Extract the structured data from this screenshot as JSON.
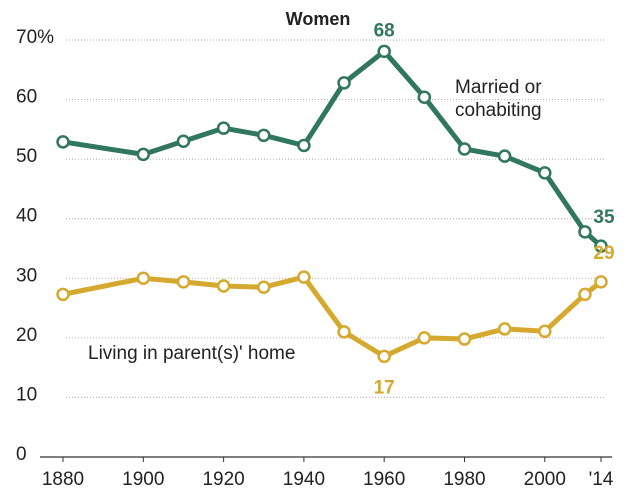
{
  "chart_data": {
    "type": "line",
    "title": "Women",
    "x": [
      1880,
      1900,
      1910,
      1920,
      1930,
      1940,
      1950,
      1960,
      1970,
      1980,
      1990,
      2000,
      2010,
      2014
    ],
    "series": [
      {
        "name": "Married or cohabiting",
        "color": "#31765e",
        "values": [
          52.9,
          50.8,
          53,
          55.2,
          54,
          52.3,
          62.8,
          68.1,
          60.4,
          51.7,
          50.5,
          47.7,
          37.8,
          35.4
        ],
        "value_labels": [
          null,
          null,
          null,
          null,
          null,
          null,
          null,
          "68",
          null,
          null,
          null,
          null,
          null,
          "35"
        ]
      },
      {
        "name": "Living in parent(s)' home",
        "color": "#d4a92e",
        "values": [
          27.3,
          30,
          29.4,
          28.7,
          28.5,
          30.2,
          21,
          16.9,
          20,
          19.8,
          21.5,
          21.1,
          27.3,
          29.4
        ],
        "value_labels": [
          null,
          null,
          null,
          null,
          null,
          null,
          null,
          "17",
          null,
          null,
          null,
          null,
          null,
          "29"
        ]
      }
    ],
    "xlim": [
      1880,
      2014
    ],
    "xticks": [
      1880,
      1900,
      1920,
      1940,
      1960,
      1980,
      2000,
      {
        "value": 2014,
        "label": "'14"
      }
    ],
    "ylim": [
      0,
      70
    ],
    "yticks": [
      0,
      10,
      20,
      30,
      40,
      50,
      60,
      {
        "value": 70,
        "label": "70%"
      }
    ],
    "grid": true
  }
}
